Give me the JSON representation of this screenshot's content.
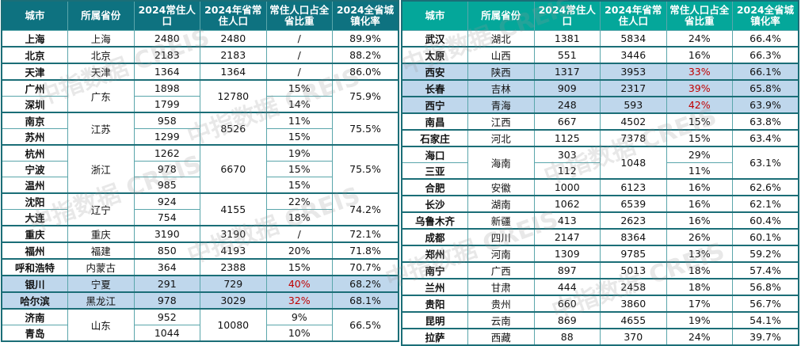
{
  "headers": [
    "城市",
    "所属省份",
    "2024常住人口",
    "2024年省常住人口",
    "常住人口占全省比重",
    "2024全省城镇化率"
  ],
  "watermark": "中指数据 CREIS",
  "left": [
    {
      "province": "上海",
      "province_pop": "2480",
      "urban": "89.9%",
      "cities": [
        {
          "name": "上海",
          "pop": "2480",
          "share": "/"
        }
      ]
    },
    {
      "province": "北京",
      "province_pop": "2183",
      "urban": "88.2%",
      "cities": [
        {
          "name": "北京",
          "pop": "2183",
          "share": "/"
        }
      ]
    },
    {
      "province": "天津",
      "province_pop": "1364",
      "urban": "86.0%",
      "cities": [
        {
          "name": "天津",
          "pop": "1364",
          "share": "/"
        }
      ]
    },
    {
      "province": "广东",
      "province_pop": "12780",
      "urban": "75.9%",
      "cities": [
        {
          "name": "广州",
          "pop": "1898",
          "share": "15%"
        },
        {
          "name": "深圳",
          "pop": "1799",
          "share": "14%"
        }
      ]
    },
    {
      "province": "江苏",
      "province_pop": "8526",
      "urban": "75.5%",
      "cities": [
        {
          "name": "南京",
          "pop": "958",
          "share": "11%"
        },
        {
          "name": "苏州",
          "pop": "1299",
          "share": "15%"
        }
      ]
    },
    {
      "province": "浙江",
      "province_pop": "6670",
      "urban": "75.5%",
      "cities": [
        {
          "name": "杭州",
          "pop": "1262",
          "share": "19%"
        },
        {
          "name": "宁波",
          "pop": "978",
          "share": "15%"
        },
        {
          "name": "温州",
          "pop": "985",
          "share": "15%"
        }
      ]
    },
    {
      "province": "辽宁",
      "province_pop": "4155",
      "urban": "74.2%",
      "cities": [
        {
          "name": "沈阳",
          "pop": "924",
          "share": "22%"
        },
        {
          "name": "大连",
          "pop": "754",
          "share": "18%"
        }
      ]
    },
    {
      "province": "重庆",
      "province_pop": "3190",
      "urban": "72.1%",
      "cities": [
        {
          "name": "重庆",
          "pop": "3190",
          "share": "/"
        }
      ]
    },
    {
      "province": "福建",
      "province_pop": "4193",
      "urban": "71.8%",
      "cities": [
        {
          "name": "福州",
          "pop": "850",
          "share": "20%"
        }
      ]
    },
    {
      "province": "内蒙古",
      "province_pop": "2388",
      "urban": "70.7%",
      "cities": [
        {
          "name": "呼和浩特",
          "pop": "364",
          "share": "15%"
        }
      ]
    },
    {
      "province": "宁夏",
      "province_pop": "729",
      "urban": "68.2%",
      "highlight": true,
      "cities": [
        {
          "name": "银川",
          "pop": "291",
          "share": "40%"
        }
      ]
    },
    {
      "province": "黑龙江",
      "province_pop": "3029",
      "urban": "68.1%",
      "highlight": true,
      "cities": [
        {
          "name": "哈尔滨",
          "pop": "978",
          "share": "32%"
        }
      ]
    },
    {
      "province": "山东",
      "province_pop": "10080",
      "urban": "66.5%",
      "cities": [
        {
          "name": "济南",
          "pop": "952",
          "share": "9%"
        },
        {
          "name": "青岛",
          "pop": "1044",
          "share": "10%"
        }
      ]
    }
  ],
  "right": [
    {
      "province": "湖北",
      "province_pop": "5834",
      "urban": "66.4%",
      "cities": [
        {
          "name": "武汉",
          "pop": "1381",
          "share": "24%"
        }
      ]
    },
    {
      "province": "山西",
      "province_pop": "3446",
      "urban": "66.3%",
      "cities": [
        {
          "name": "太原",
          "pop": "551",
          "share": "16%"
        }
      ]
    },
    {
      "province": "陕西",
      "province_pop": "3953",
      "urban": "66.1%",
      "highlight": true,
      "cities": [
        {
          "name": "西安",
          "pop": "1317",
          "share": "33%"
        }
      ]
    },
    {
      "province": "吉林",
      "province_pop": "2317",
      "urban": "65.8%",
      "highlight": true,
      "cities": [
        {
          "name": "长春",
          "pop": "909",
          "share": "39%"
        }
      ]
    },
    {
      "province": "青海",
      "province_pop": "593",
      "urban": "63.9%",
      "highlight": true,
      "cities": [
        {
          "name": "西宁",
          "pop": "248",
          "share": "42%"
        }
      ]
    },
    {
      "province": "江西",
      "province_pop": "4502",
      "urban": "63.8%",
      "cities": [
        {
          "name": "南昌",
          "pop": "667",
          "share": "15%"
        }
      ]
    },
    {
      "province": "河北",
      "province_pop": "7378",
      "urban": "63.4%",
      "cities": [
        {
          "name": "石家庄",
          "pop": "1125",
          "share": "15%"
        }
      ]
    },
    {
      "province": "海南",
      "province_pop": "1048",
      "urban": "63.1%",
      "cities": [
        {
          "name": "海口",
          "pop": "303",
          "share": "29%"
        },
        {
          "name": "三亚",
          "pop": "112",
          "share": "11%"
        }
      ]
    },
    {
      "province": "安徽",
      "province_pop": "6123",
      "urban": "62.6%",
      "cities": [
        {
          "name": "合肥",
          "pop": "1000",
          "share": "16%"
        }
      ]
    },
    {
      "province": "湖南",
      "province_pop": "6539",
      "urban": "62.1%",
      "cities": [
        {
          "name": "长沙",
          "pop": "1062",
          "share": "16%"
        }
      ]
    },
    {
      "province": "新疆",
      "province_pop": "2623",
      "urban": "60.4%",
      "cities": [
        {
          "name": "乌鲁木齐",
          "pop": "413",
          "share": "16%"
        }
      ]
    },
    {
      "province": "四川",
      "province_pop": "8364",
      "urban": "60.1%",
      "cities": [
        {
          "name": "成都",
          "pop": "2147",
          "share": "26%"
        }
      ]
    },
    {
      "province": "河南",
      "province_pop": "9785",
      "urban": "59.2%",
      "cities": [
        {
          "name": "郑州",
          "pop": "1309",
          "share": "13%"
        }
      ]
    },
    {
      "province": "广西",
      "province_pop": "5013",
      "urban": "57.4%",
      "cities": [
        {
          "name": "南宁",
          "pop": "897",
          "share": "18%"
        }
      ]
    },
    {
      "province": "甘肃",
      "province_pop": "2458",
      "urban": "56.8%",
      "cities": [
        {
          "name": "兰州",
          "pop": "444",
          "share": "18%"
        }
      ]
    },
    {
      "province": "贵州",
      "province_pop": "3860",
      "urban": "56.7%",
      "cities": [
        {
          "name": "贵阳",
          "pop": "660",
          "share": "17%"
        }
      ]
    },
    {
      "province": "云南",
      "province_pop": "4655",
      "urban": "54.1%",
      "cities": [
        {
          "name": "昆明",
          "pop": "869",
          "share": "19%"
        }
      ]
    },
    {
      "province": "西藏",
      "province_pop": "370",
      "urban": "39.7%",
      "cities": [
        {
          "name": "拉萨",
          "pop": "88",
          "share": "24%"
        }
      ]
    }
  ]
}
